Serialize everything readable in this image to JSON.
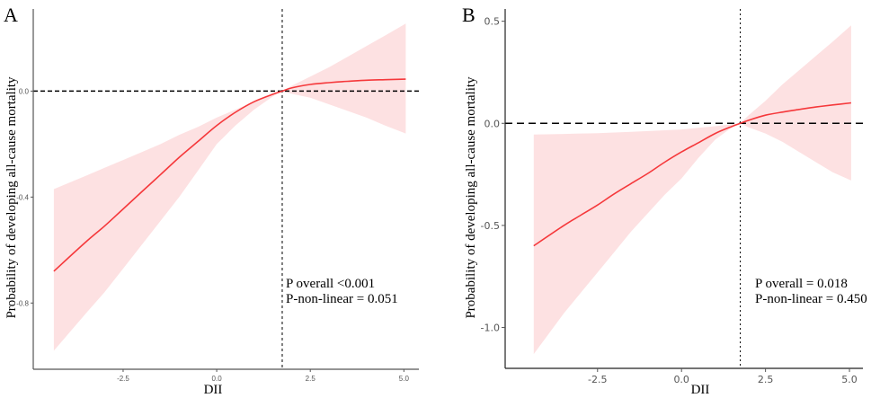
{
  "colors": {
    "ribbon": "#fde1e2",
    "line": "#f5383b",
    "axis": "#555555",
    "reference": "#000000"
  },
  "chart_data": [
    {
      "panel": "A",
      "type": "line",
      "title": "",
      "xlabel": "DII",
      "ylabel": "Probability of developing all-cause mortality",
      "xlim": [
        -4.9,
        5.4
      ],
      "ylim": [
        -1.05,
        0.31
      ],
      "xticks": [
        -2.5,
        0.0,
        2.5,
        5.0
      ],
      "xtick_labels": [
        "-2.5",
        "0.0",
        "2.5",
        "5.0"
      ],
      "yticks": [
        0.0,
        -0.4,
        -0.8
      ],
      "ytick_labels": [
        "0.0",
        "-0.4",
        "-0.8"
      ],
      "grid": false,
      "reference_lines": {
        "x": 1.75,
        "y": 0.0
      },
      "x": [
        -4.35,
        -3.5,
        -3.0,
        -2.5,
        -2.0,
        -1.5,
        -1.0,
        -0.5,
        0.0,
        0.5,
        1.0,
        1.5,
        1.75,
        2.0,
        2.5,
        3.0,
        3.5,
        4.0,
        4.5,
        5.05
      ],
      "series": [
        {
          "name": "estimate",
          "values": [
            -0.68,
            -0.57,
            -0.51,
            -0.445,
            -0.38,
            -0.315,
            -0.25,
            -0.19,
            -0.13,
            -0.08,
            -0.04,
            -0.012,
            0.0,
            0.012,
            0.025,
            0.032,
            0.037,
            0.041,
            0.043,
            0.045
          ]
        },
        {
          "name": "upper_ci",
          "values": [
            -0.37,
            -0.32,
            -0.29,
            -0.26,
            -0.23,
            -0.2,
            -0.165,
            -0.135,
            -0.1,
            -0.07,
            -0.04,
            -0.013,
            0.0,
            0.02,
            0.055,
            0.09,
            0.13,
            0.17,
            0.21,
            0.255
          ]
        },
        {
          "name": "lower_ci",
          "values": [
            -0.98,
            -0.84,
            -0.76,
            -0.67,
            -0.58,
            -0.49,
            -0.4,
            -0.3,
            -0.2,
            -0.13,
            -0.07,
            -0.02,
            0.0,
            -0.01,
            -0.025,
            -0.05,
            -0.075,
            -0.1,
            -0.13,
            -0.16
          ]
        }
      ],
      "annotations": [
        "P overall <0.001",
        "P-non-linear =  0.051"
      ]
    },
    {
      "panel": "B",
      "type": "line",
      "title": "",
      "xlabel": "DII",
      "ylabel": "Probability of developing all-cause mortality",
      "xlim": [
        -5.25,
        5.4
      ],
      "ylim": [
        -1.2,
        0.56
      ],
      "xticks": [
        -2.5,
        0.0,
        2.5,
        5.0
      ],
      "xtick_labels": [
        "-2.5",
        "0.0",
        "2.5",
        "5.0"
      ],
      "yticks": [
        0.5,
        0.0,
        -0.5,
        -1.0
      ],
      "ytick_labels": [
        "0.5",
        "0.0",
        "-0.5",
        "-1.0"
      ],
      "grid": false,
      "reference_lines": {
        "x": 1.75,
        "y": 0.0
      },
      "x": [
        -4.4,
        -3.5,
        -3.0,
        -2.5,
        -2.0,
        -1.5,
        -1.0,
        -0.5,
        0.0,
        0.5,
        1.0,
        1.5,
        1.75,
        2.0,
        2.5,
        3.0,
        3.5,
        4.0,
        4.5,
        5.05
      ],
      "series": [
        {
          "name": "estimate",
          "values": [
            -0.6,
            -0.5,
            -0.45,
            -0.4,
            -0.345,
            -0.295,
            -0.245,
            -0.19,
            -0.14,
            -0.095,
            -0.05,
            -0.015,
            0.0,
            0.015,
            0.04,
            0.055,
            0.068,
            0.08,
            0.09,
            0.1
          ]
        },
        {
          "name": "upper_ci",
          "values": [
            -0.055,
            -0.052,
            -0.05,
            -0.048,
            -0.045,
            -0.042,
            -0.038,
            -0.034,
            -0.03,
            -0.022,
            -0.014,
            -0.004,
            0.0,
            0.04,
            0.11,
            0.19,
            0.26,
            0.33,
            0.4,
            0.48
          ]
        },
        {
          "name": "lower_ci",
          "values": [
            -1.13,
            -0.93,
            -0.83,
            -0.73,
            -0.63,
            -0.53,
            -0.44,
            -0.35,
            -0.27,
            -0.17,
            -0.08,
            -0.02,
            0.0,
            -0.02,
            -0.05,
            -0.09,
            -0.14,
            -0.19,
            -0.24,
            -0.28
          ]
        }
      ],
      "annotations": [
        "P overall = 0.018",
        "P-non-linear =  0.450"
      ]
    }
  ]
}
